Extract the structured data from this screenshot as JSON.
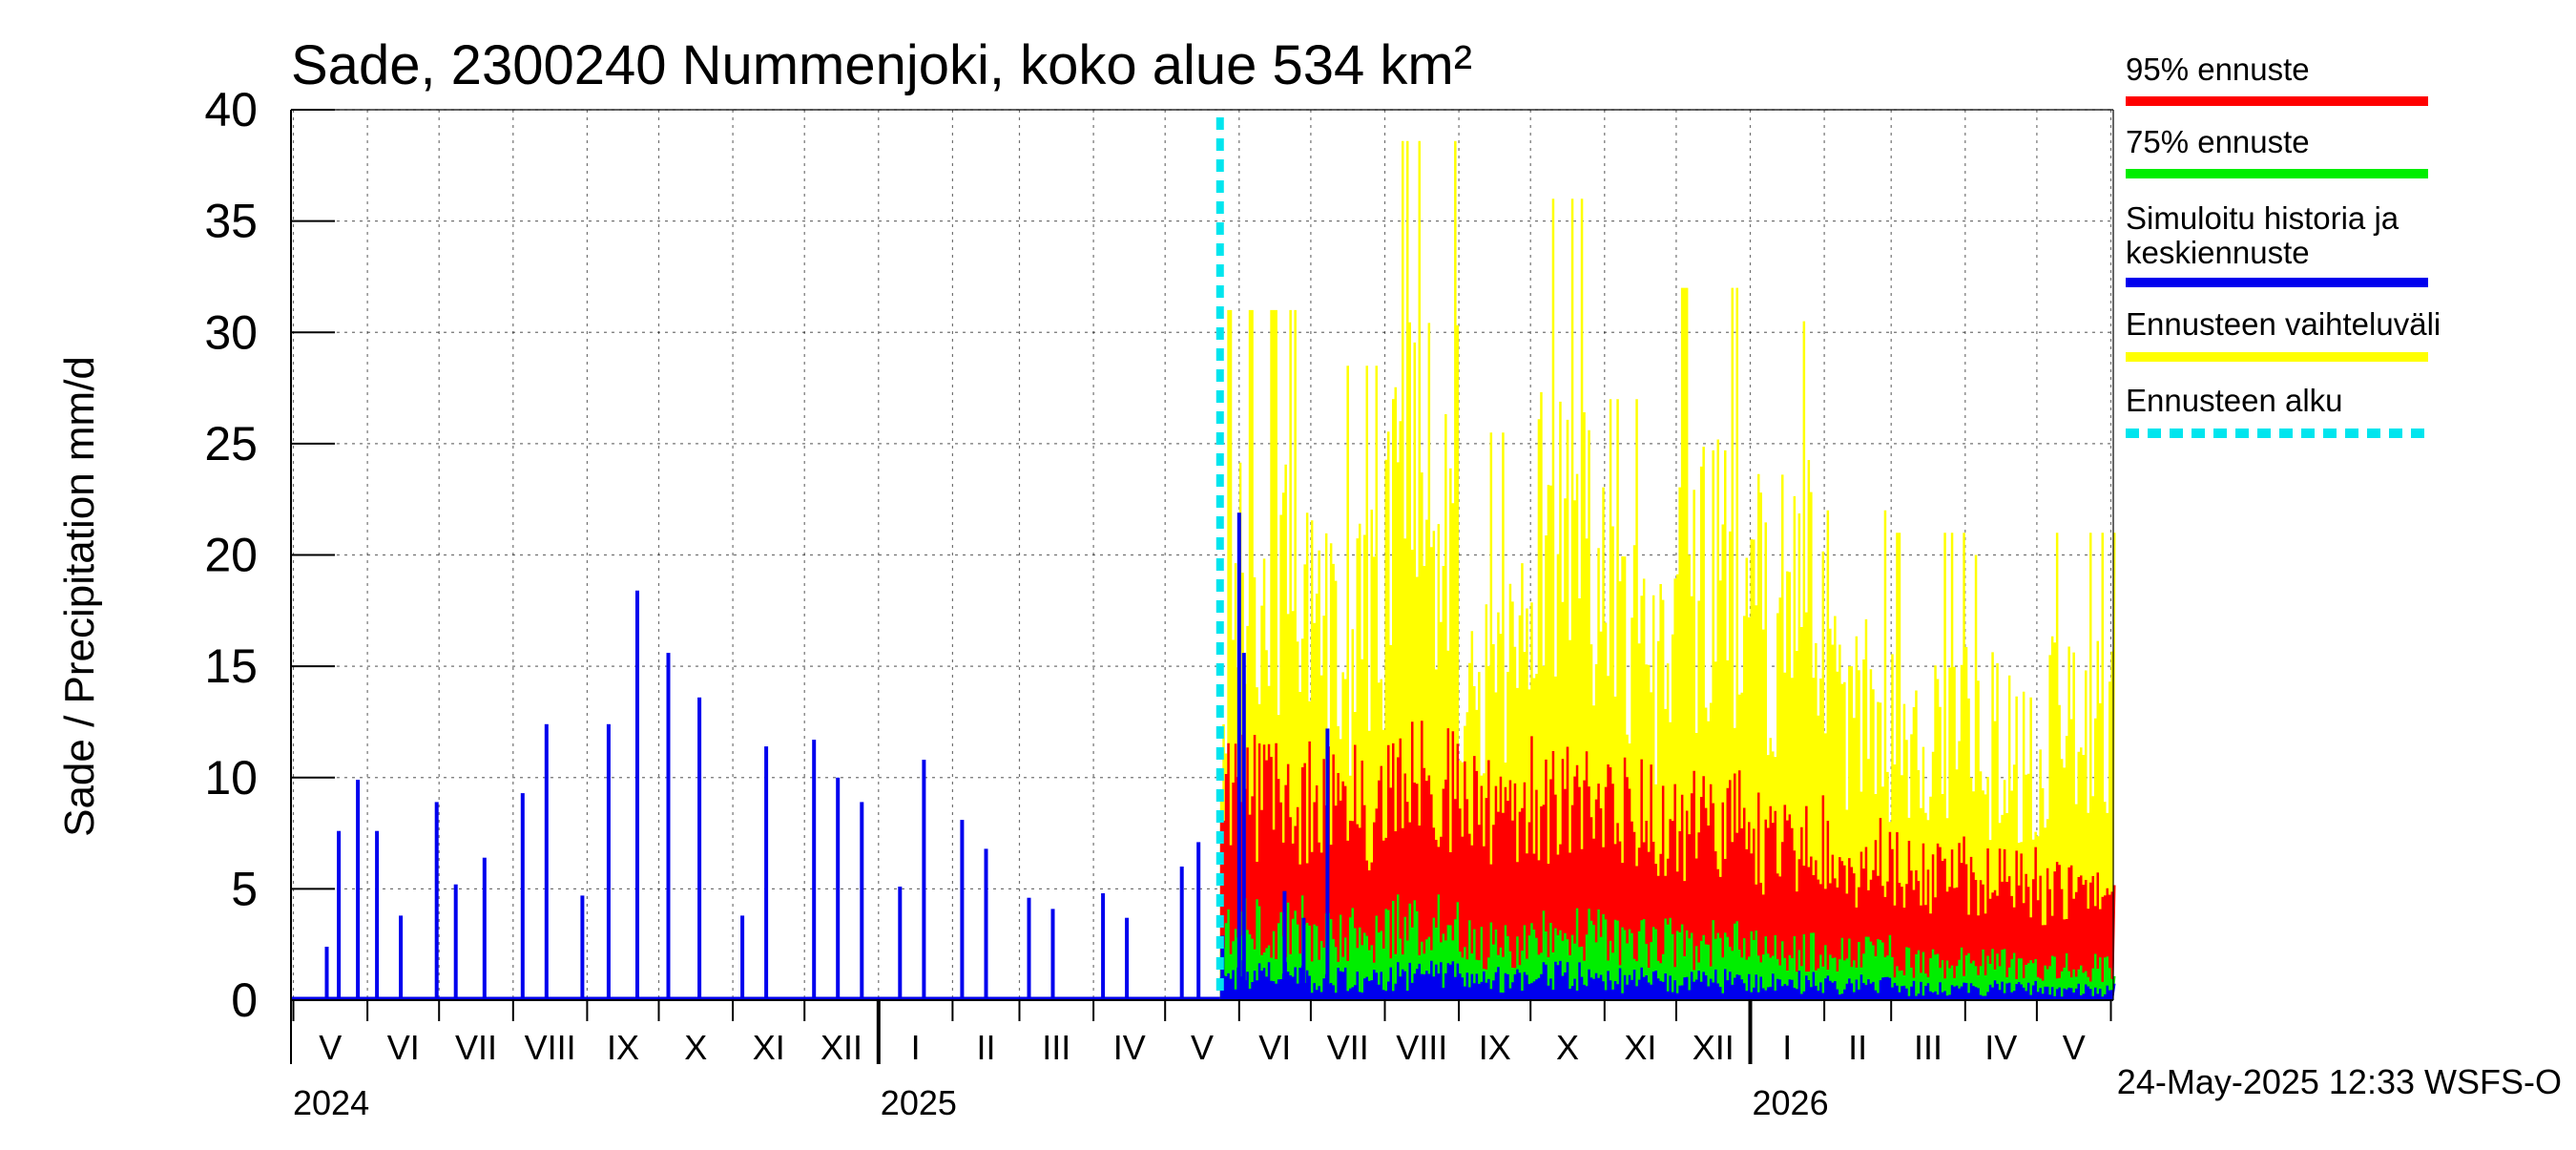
{
  "chart_data": {
    "type": "bar",
    "title": "Sade, 2300240 Nummenjoki, koko alue 534 km²",
    "ylabel": "Sade / Precipitation   mm/d",
    "ylim": [
      0,
      40
    ],
    "yticks": [
      0,
      5,
      10,
      15,
      20,
      25,
      30,
      35,
      40
    ],
    "grid": true,
    "legend_position": "right",
    "month_labels": [
      "V",
      "VI",
      "VII",
      "VIII",
      "IX",
      "X",
      "XI",
      "XII",
      "I",
      "II",
      "III",
      "IV",
      "V",
      "VI",
      "VII",
      "VIII",
      "IX",
      "X",
      "XI",
      "XII",
      "I",
      "II",
      "III",
      "IV",
      "V"
    ],
    "year_labels": [
      "2024",
      "2025",
      "2026"
    ],
    "forecast_start": "2025-05-24",
    "legend": [
      {
        "name": "95% ennuste",
        "color": "#ff0000",
        "style": "solid"
      },
      {
        "name": "75% ennuste",
        "color": "#00ee00",
        "style": "solid"
      },
      {
        "name": "Simuloitu historia ja keskiennuste",
        "color": "#0000ee",
        "style": "solid"
      },
      {
        "name": "Ennusteen vaihteluväli",
        "color": "#ffff00",
        "style": "solid"
      },
      {
        "name": "Ennusteen alku",
        "color": "#00e5ee",
        "style": "dashed"
      }
    ],
    "history_peaks": [
      {
        "date": "2024-05-15",
        "value": 2.4
      },
      {
        "date": "2024-05-20",
        "value": 7.6
      },
      {
        "date": "2024-05-28",
        "value": 9.9
      },
      {
        "date": "2024-06-05",
        "value": 7.6
      },
      {
        "date": "2024-06-15",
        "value": 3.8
      },
      {
        "date": "2024-06-30",
        "value": 8.9
      },
      {
        "date": "2024-07-08",
        "value": 5.2
      },
      {
        "date": "2024-07-20",
        "value": 6.4
      },
      {
        "date": "2024-08-05",
        "value": 9.3
      },
      {
        "date": "2024-08-15",
        "value": 12.4
      },
      {
        "date": "2024-08-30",
        "value": 4.7
      },
      {
        "date": "2024-09-10",
        "value": 12.4
      },
      {
        "date": "2024-09-22",
        "value": 18.4
      },
      {
        "date": "2024-10-05",
        "value": 15.6
      },
      {
        "date": "2024-10-18",
        "value": 13.6
      },
      {
        "date": "2024-11-05",
        "value": 3.8
      },
      {
        "date": "2024-11-15",
        "value": 11.4
      },
      {
        "date": "2024-12-05",
        "value": 11.7
      },
      {
        "date": "2024-12-15",
        "value": 10.0
      },
      {
        "date": "2024-12-25",
        "value": 8.9
      },
      {
        "date": "2025-01-10",
        "value": 5.1
      },
      {
        "date": "2025-01-20",
        "value": 10.8
      },
      {
        "date": "2025-02-05",
        "value": 8.1
      },
      {
        "date": "2025-02-15",
        "value": 6.8
      },
      {
        "date": "2025-03-05",
        "value": 4.6
      },
      {
        "date": "2025-03-15",
        "value": 4.1
      },
      {
        "date": "2025-04-05",
        "value": 4.8
      },
      {
        "date": "2025-04-15",
        "value": 3.7
      },
      {
        "date": "2025-05-08",
        "value": 6.0
      },
      {
        "date": "2025-05-15",
        "value": 7.1
      },
      {
        "date": "2025-05-25",
        "value": 2.9
      },
      {
        "date": "2025-06-01",
        "value": 21.9
      },
      {
        "date": "2025-06-03",
        "value": 15.6
      },
      {
        "date": "2025-06-20",
        "value": 4.9
      },
      {
        "date": "2025-06-28",
        "value": 3.7
      },
      {
        "date": "2025-07-08",
        "value": 12.2
      }
    ],
    "forecast_monthly": {
      "months": [
        "VI",
        "VII",
        "VIII",
        "IX",
        "X",
        "XI",
        "XII",
        "I",
        "II",
        "III",
        "IV",
        "V"
      ],
      "p95": [
        11.0,
        10.5,
        12.0,
        10.5,
        11.0,
        10.0,
        9.5,
        8.5,
        7.5,
        7.0,
        6.5,
        6.0
      ],
      "p75": [
        4.0,
        3.5,
        4.0,
        3.0,
        3.5,
        3.2,
        3.0,
        2.8,
        2.5,
        2.0,
        2.0,
        1.8
      ],
      "mean": [
        1.2,
        1.0,
        1.2,
        1.0,
        1.2,
        1.0,
        1.0,
        0.9,
        0.8,
        0.6,
        0.6,
        0.5
      ],
      "max": [
        31.0,
        28.5,
        38.6,
        25.5,
        36.0,
        27.0,
        32.0,
        30.5,
        22.0,
        21.0,
        20.0,
        21.0
      ]
    }
  },
  "footer": {
    "timestamp": "24-May-2025 12:33 WSFS-O"
  }
}
